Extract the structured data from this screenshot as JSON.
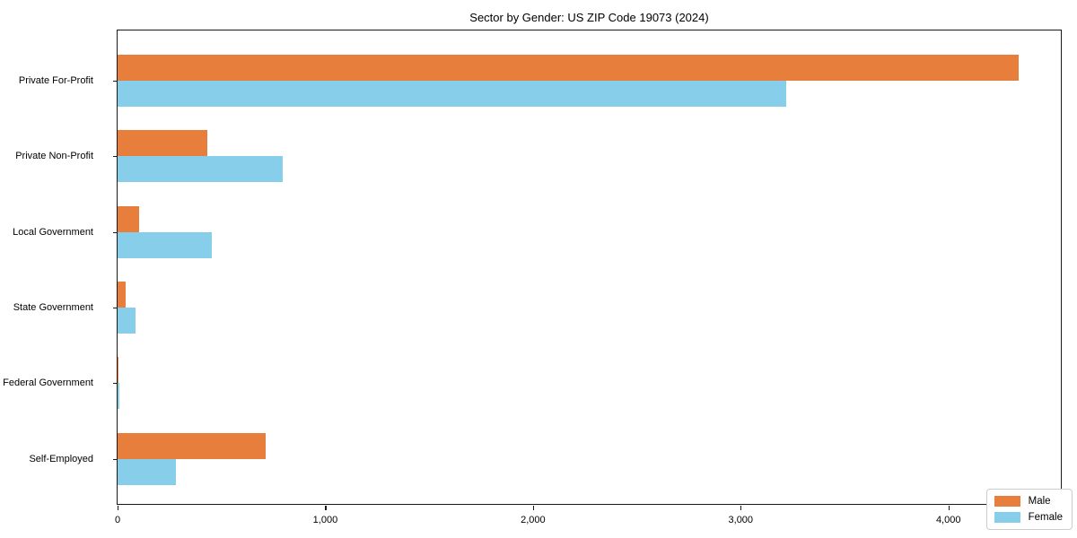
{
  "chart_data": {
    "type": "bar",
    "orientation": "horizontal",
    "title": "Sector by Gender: US ZIP Code 19073 (2024)",
    "categories": [
      "Private For-Profit",
      "Private Non-Profit",
      "Local Government",
      "State Government",
      "Federal Government",
      "Self-Employed"
    ],
    "series": [
      {
        "name": "Male",
        "color": "#e87e3c",
        "values": [
          4340,
          430,
          105,
          40,
          5,
          715
        ]
      },
      {
        "name": "Female",
        "color": "#87ceeb",
        "values": [
          3220,
          795,
          455,
          85,
          10,
          280
        ]
      }
    ],
    "xlabel": "",
    "ylabel": "",
    "xlim": [
      0,
      4550
    ],
    "xticks": {
      "values": [
        0,
        1000,
        2000,
        3000,
        4000
      ],
      "labels": [
        "0",
        "1,000",
        "2,000",
        "3,000",
        "4,000"
      ]
    },
    "grid": false,
    "legend_position": "lower right",
    "colors": {
      "axis": "#1a1a1a",
      "text": "#000000",
      "background": "#ffffff"
    }
  }
}
